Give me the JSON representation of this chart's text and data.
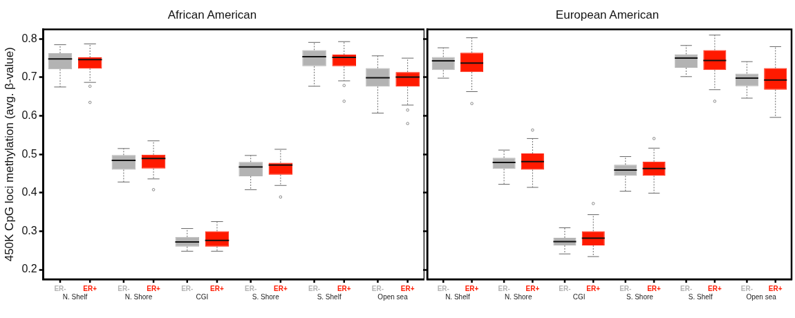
{
  "chart_data": [
    {
      "type": "box",
      "title": "African American",
      "ylabel": "450K CpG loci methylation (avg. β-value)",
      "categories": [
        "N. Shelf",
        "N. Shore",
        "CGI",
        "S. Shore",
        "S. Shelf",
        "Open sea"
      ],
      "ylim": [
        0.175,
        0.825
      ],
      "yticks": [
        0.2,
        0.3,
        0.4,
        0.5,
        0.6,
        0.7,
        0.8
      ],
      "grid": false,
      "series": [
        {
          "name": "ER-",
          "color": "#b3b3b3",
          "boxes": [
            {
              "low": 0.675,
              "q1": 0.721,
              "median": 0.748,
              "q3": 0.763,
              "high": 0.785
            },
            {
              "low": 0.428,
              "q1": 0.46,
              "median": 0.484,
              "q3": 0.498,
              "high": 0.515
            },
            {
              "low": 0.248,
              "q1": 0.26,
              "median": 0.272,
              "q3": 0.285,
              "high": 0.307
            },
            {
              "low": 0.408,
              "q1": 0.443,
              "median": 0.467,
              "q3": 0.48,
              "high": 0.497
            },
            {
              "low": 0.677,
              "q1": 0.729,
              "median": 0.754,
              "q3": 0.771,
              "high": 0.791
            },
            {
              "low": 0.607,
              "q1": 0.676,
              "median": 0.699,
              "q3": 0.724,
              "high": 0.756
            }
          ]
        },
        {
          "name": "ER+",
          "color": "#ff1a00",
          "boxes": [
            {
              "low": 0.687,
              "q1": 0.723,
              "median": 0.746,
              "q3": 0.752,
              "high": 0.787,
              "outliers": [
                0.677,
                0.635
              ]
            },
            {
              "low": 0.436,
              "q1": 0.463,
              "median": 0.489,
              "q3": 0.499,
              "high": 0.535,
              "outliers": [
                0.408
              ]
            },
            {
              "low": 0.248,
              "q1": 0.26,
              "median": 0.276,
              "q3": 0.3,
              "high": 0.325
            },
            {
              "low": 0.419,
              "q1": 0.447,
              "median": 0.472,
              "q3": 0.478,
              "high": 0.513,
              "outliers": [
                0.389
              ]
            },
            {
              "low": 0.691,
              "q1": 0.729,
              "median": 0.752,
              "q3": 0.759,
              "high": 0.793,
              "outliers": [
                0.679,
                0.638
              ]
            },
            {
              "low": 0.628,
              "q1": 0.676,
              "median": 0.701,
              "q3": 0.714,
              "high": 0.75,
              "outliers": [
                0.615,
                0.58
              ]
            }
          ]
        }
      ]
    },
    {
      "type": "box",
      "title": "European American",
      "categories": [
        "N. Shelf",
        "N. Shore",
        "CGI",
        "S. Shore",
        "S. Shelf",
        "Open sea"
      ],
      "ylim": [
        0.175,
        0.825
      ],
      "yticks": [
        0.2,
        0.3,
        0.4,
        0.5,
        0.6,
        0.7,
        0.8
      ],
      "grid": false,
      "tick_labels": "x",
      "series": [
        {
          "name": "ER-",
          "color": "#b3b3b3",
          "boxes": [
            {
              "low": 0.698,
              "q1": 0.719,
              "median": 0.743,
              "q3": 0.753,
              "high": 0.777
            },
            {
              "low": 0.422,
              "q1": 0.462,
              "median": 0.479,
              "q3": 0.491,
              "high": 0.511
            },
            {
              "low": 0.241,
              "q1": 0.263,
              "median": 0.273,
              "q3": 0.283,
              "high": 0.309
            },
            {
              "low": 0.404,
              "q1": 0.444,
              "median": 0.459,
              "q3": 0.473,
              "high": 0.494
            },
            {
              "low": 0.702,
              "q1": 0.725,
              "median": 0.75,
              "q3": 0.76,
              "high": 0.783
            },
            {
              "low": 0.646,
              "q1": 0.677,
              "median": 0.698,
              "q3": 0.71,
              "high": 0.741
            }
          ]
        },
        {
          "name": "ER+",
          "color": "#ff1a00",
          "boxes": [
            {
              "low": 0.663,
              "q1": 0.714,
              "median": 0.737,
              "q3": 0.764,
              "high": 0.803,
              "outliers": [
                0.632
              ]
            },
            {
              "low": 0.414,
              "q1": 0.46,
              "median": 0.481,
              "q3": 0.502,
              "high": 0.541,
              "outliers": [
                0.563
              ]
            },
            {
              "low": 0.234,
              "q1": 0.263,
              "median": 0.282,
              "q3": 0.3,
              "high": 0.343,
              "outliers": [
                0.372
              ]
            },
            {
              "low": 0.399,
              "q1": 0.444,
              "median": 0.463,
              "q3": 0.481,
              "high": 0.516,
              "outliers": [
                0.541
              ]
            },
            {
              "low": 0.668,
              "q1": 0.719,
              "median": 0.744,
              "q3": 0.771,
              "high": 0.81,
              "outliers": [
                0.638
              ]
            },
            {
              "low": 0.596,
              "q1": 0.668,
              "median": 0.693,
              "q3": 0.724,
              "high": 0.78
            }
          ]
        }
      ]
    }
  ]
}
